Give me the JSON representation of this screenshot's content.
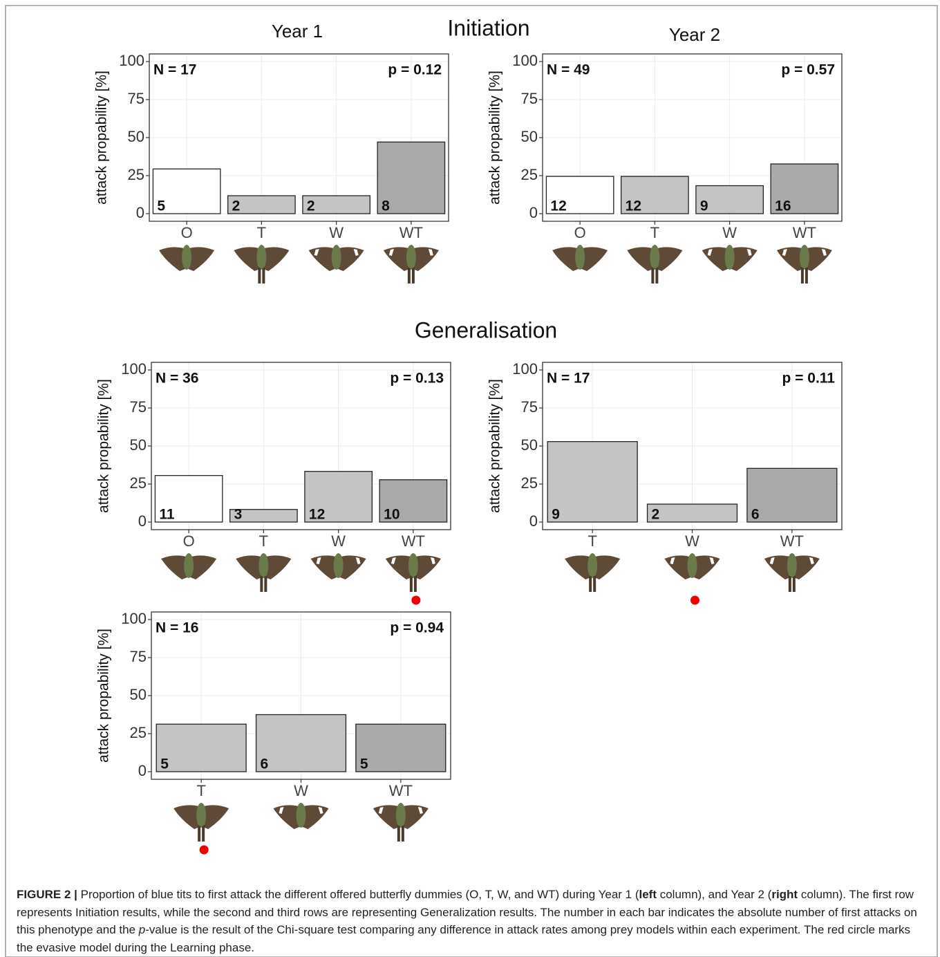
{
  "headings": {
    "initiation": "Initiation",
    "generalisation": "Generalisation",
    "year1": "Year 1",
    "year2": "Year 2"
  },
  "chart_data": [
    {
      "type": "bar",
      "ylabel": "attack propability [%]",
      "n_label": "N = 17",
      "p_label": "p = 0.12",
      "categories": [
        "O",
        "T",
        "W",
        "WT"
      ],
      "values": [
        29.4,
        11.8,
        11.8,
        47.1
      ],
      "counts": [
        5,
        2,
        2,
        8
      ],
      "colors": [
        "#ffffff",
        "#c4c4c4",
        "#c4c4c4",
        "#a9a9a9"
      ],
      "ylim": [
        -5,
        105
      ],
      "yticks": [
        0,
        25,
        50,
        75,
        100
      ],
      "grid": true
    },
    {
      "type": "bar",
      "ylabel": "attack propability [%]",
      "n_label": "N = 49",
      "p_label": "p = 0.57",
      "categories": [
        "O",
        "T",
        "W",
        "WT"
      ],
      "values": [
        24.5,
        24.5,
        18.4,
        32.7
      ],
      "counts": [
        12,
        12,
        9,
        16
      ],
      "colors": [
        "#ffffff",
        "#c4c4c4",
        "#c4c4c4",
        "#a9a9a9"
      ],
      "ylim": [
        -5,
        105
      ],
      "yticks": [
        0,
        25,
        50,
        75,
        100
      ],
      "grid": true
    },
    {
      "type": "bar",
      "ylabel": "attack propability [%]",
      "n_label": "N = 36",
      "p_label": "p = 0.13",
      "categories": [
        "O",
        "T",
        "W",
        "WT"
      ],
      "values": [
        30.6,
        8.3,
        33.3,
        27.8
      ],
      "counts": [
        11,
        3,
        12,
        10
      ],
      "colors": [
        "#ffffff",
        "#c4c4c4",
        "#c4c4c4",
        "#a9a9a9"
      ],
      "ylim": [
        -5,
        105
      ],
      "yticks": [
        0,
        25,
        50,
        75,
        100
      ],
      "grid": true,
      "evasive_category": "WT"
    },
    {
      "type": "bar",
      "ylabel": "attack propability [%]",
      "n_label": "N = 17",
      "p_label": "p = 0.11",
      "categories": [
        "T",
        "W",
        "WT"
      ],
      "values": [
        52.9,
        11.8,
        35.3
      ],
      "counts": [
        9,
        2,
        6
      ],
      "colors": [
        "#c4c4c4",
        "#c4c4c4",
        "#a9a9a9"
      ],
      "ylim": [
        -5,
        105
      ],
      "yticks": [
        0,
        25,
        50,
        75,
        100
      ],
      "grid": true,
      "evasive_category": "W"
    },
    {
      "type": "bar",
      "ylabel": "attack propability [%]",
      "n_label": "N = 16",
      "p_label": "p = 0.94",
      "categories": [
        "T",
        "W",
        "WT"
      ],
      "values": [
        31.25,
        37.5,
        31.25
      ],
      "counts": [
        5,
        6,
        5
      ],
      "colors": [
        "#c4c4c4",
        "#c4c4c4",
        "#a9a9a9"
      ],
      "ylim": [
        -5,
        105
      ],
      "yticks": [
        0,
        25,
        50,
        75,
        100
      ],
      "grid": true,
      "evasive_category": "T"
    }
  ],
  "caption": [
    {
      "text": "FIGURE 2 |",
      "style": "bold"
    },
    {
      "text": " Proportion of blue tits to first attack the different offered butterfly dummies (O, T, W, and WT) during Year 1 (",
      "style": "normal"
    },
    {
      "text": "left",
      "style": "bold"
    },
    {
      "text": " column), and Year 2 (",
      "style": "normal"
    },
    {
      "text": "right",
      "style": "bold"
    },
    {
      "text": " column). The first row represents Initiation results, while the second and third rows are representing Generalization results. The number in each bar indicates the absolute number of first attacks on this phenotype and the ",
      "style": "normal"
    },
    {
      "text": "p",
      "style": "italic"
    },
    {
      "text": "-value is the result of the Chi-square test comparing any difference in attack rates among prey models within each experiment. The red circle marks the evasive model during the Learning phase.",
      "style": "normal"
    }
  ]
}
